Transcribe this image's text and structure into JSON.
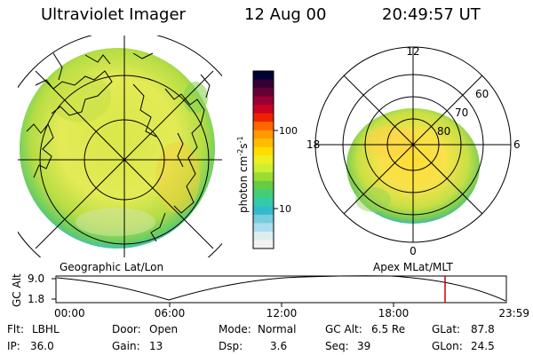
{
  "header": {
    "instrument": "Ultraviolet Imager",
    "date": "12 Aug 00",
    "time": "20:49:57 UT"
  },
  "geo_map": {
    "label": "Geographic Lat/Lon"
  },
  "polar_plot": {
    "label": "Apex MLat/MLT",
    "mlt_labels": [
      "12",
      "18",
      "6",
      "0"
    ],
    "lat_labels": [
      "60",
      "70",
      "80"
    ]
  },
  "colorbar": {
    "unit_label": "photon cm",
    "unit_sup1": "-2",
    "unit_mid": "s",
    "unit_sup2": "-1",
    "tick_labels": [
      "100",
      "10"
    ],
    "colors": [
      "#000033",
      "#330033",
      "#660033",
      "#990033",
      "#cc0022",
      "#ee2200",
      "#ff6600",
      "#ff9900",
      "#ffbb00",
      "#ffdd00",
      "#eeee22",
      "#ccee33",
      "#99dd33",
      "#66cc44",
      "#44cc77",
      "#33ccaa",
      "#33bbcc",
      "#77ccdd",
      "#aaddee",
      "#ddeeee",
      "#f2f2f2"
    ]
  },
  "altitude_plot": {
    "axis_label": "GC Alt",
    "y_ticks": [
      "9.0",
      "1.8"
    ],
    "x_ticks": [
      "00:00",
      "06:00",
      "12:00",
      "18:00",
      "23:59"
    ],
    "current_marker_color": "#cc0000"
  },
  "info": {
    "flt_label": "Flt:",
    "flt_value": "LBHL",
    "ip_label": "IP:",
    "ip_value": "36.0",
    "door_label": "Door:",
    "door_value": "Open",
    "gain_label": "Gain:",
    "gain_value": "13",
    "mode_label": "Mode:",
    "mode_value": "Normal",
    "dsp_label": "Dsp:",
    "dsp_value": "3.6",
    "gcalt_label": "GC Alt:",
    "gcalt_value": "6.5 Re",
    "seq_label": "Seq:",
    "seq_value": "39",
    "glat_label": "GLat:",
    "glat_value": "87.8",
    "glon_label": "GLon:",
    "glon_value": "24.5"
  }
}
